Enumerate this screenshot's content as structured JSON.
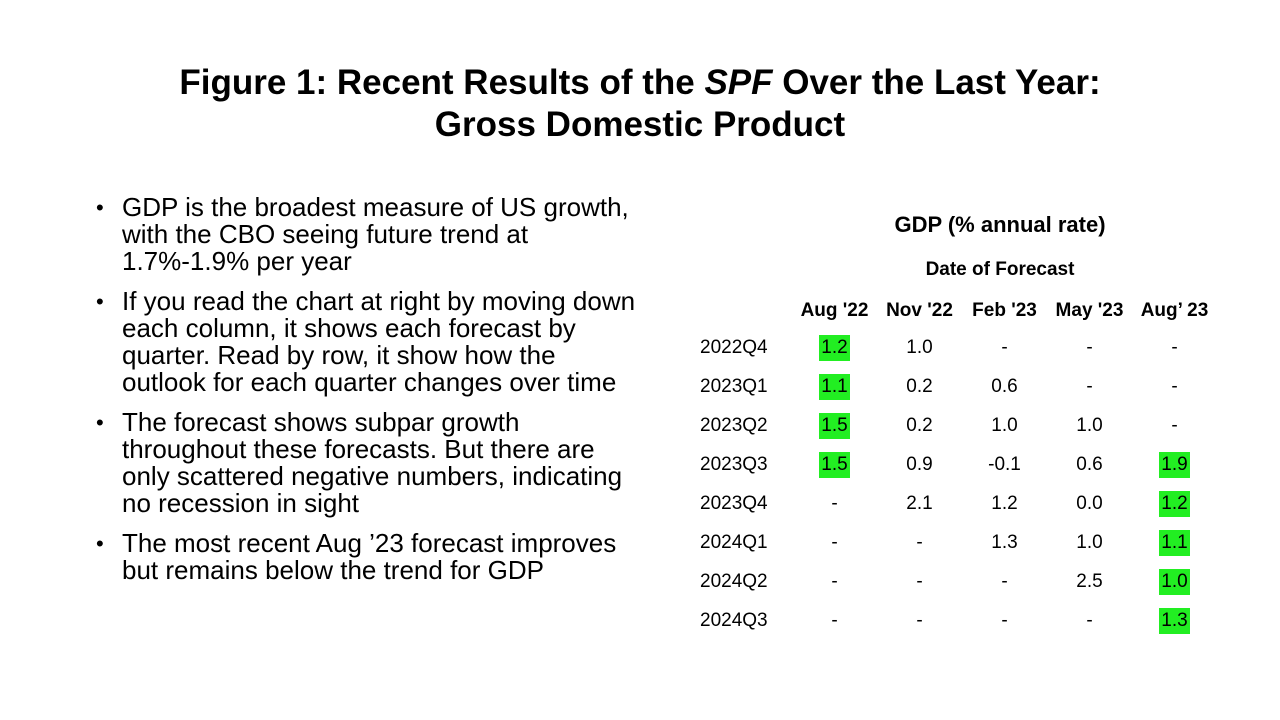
{
  "title": {
    "line1_before": "Figure 1: Recent Results of the ",
    "line1_italic": "SPF",
    "line1_after": " Over the Last Year:",
    "line2": "Gross Domestic Product"
  },
  "bullets": [
    "GDP is the broadest measure of US growth, with the CBO seeing future trend at 1.7%-1.9% per year",
    "If you read the chart at right by moving down each column, it shows each forecast by quarter. Read by row, it show how the outlook for each quarter changes over time",
    "The forecast shows subpar growth throughout these forecasts.  But there are only scattered negative numbers, indicating no recession in sight",
    "The most recent Aug ’23 forecast improves but remains below the trend for GDP"
  ],
  "bullet_symbol": "•",
  "highlight_color": "#22ee22",
  "table": {
    "title": "GDP (% annual rate)",
    "subtitle": "Date of Forecast",
    "columns": [
      "Aug '22",
      "Nov '22",
      "Feb '23",
      "May '23",
      "Aug’ 23"
    ],
    "rows": [
      {
        "label": "2022Q4",
        "cells": [
          {
            "v": "1.2",
            "hl": true
          },
          {
            "v": "1.0"
          },
          {
            "v": "-"
          },
          {
            "v": "-"
          },
          {
            "v": "-"
          }
        ]
      },
      {
        "label": "2023Q1",
        "cells": [
          {
            "v": "1.1",
            "hl": true
          },
          {
            "v": "0.2"
          },
          {
            "v": "0.6"
          },
          {
            "v": "-"
          },
          {
            "v": "-"
          }
        ]
      },
      {
        "label": "2023Q2",
        "cells": [
          {
            "v": "1.5",
            "hl": true
          },
          {
            "v": "0.2"
          },
          {
            "v": "1.0"
          },
          {
            "v": "1.0"
          },
          {
            "v": "-"
          }
        ]
      },
      {
        "label": "2023Q3",
        "cells": [
          {
            "v": "1.5",
            "hl": true
          },
          {
            "v": "0.9"
          },
          {
            "v": "-0.1"
          },
          {
            "v": "0.6"
          },
          {
            "v": "1.9",
            "hl": true
          }
        ]
      },
      {
        "label": "2023Q4",
        "cells": [
          {
            "v": "-"
          },
          {
            "v": "2.1"
          },
          {
            "v": "1.2"
          },
          {
            "v": "0.0"
          },
          {
            "v": "1.2",
            "hl": true
          }
        ]
      },
      {
        "label": "2024Q1",
        "cells": [
          {
            "v": "-"
          },
          {
            "v": "-"
          },
          {
            "v": "1.3"
          },
          {
            "v": "1.0"
          },
          {
            "v": "1.1",
            "hl": true
          }
        ]
      },
      {
        "label": "2024Q2",
        "cells": [
          {
            "v": "-"
          },
          {
            "v": "-"
          },
          {
            "v": "-"
          },
          {
            "v": "2.5"
          },
          {
            "v": "1.0",
            "hl": true
          }
        ]
      },
      {
        "label": "2024Q3",
        "cells": [
          {
            "v": "-"
          },
          {
            "v": "-"
          },
          {
            "v": "-"
          },
          {
            "v": "-"
          },
          {
            "v": "1.3",
            "hl": true
          }
        ]
      }
    ]
  }
}
